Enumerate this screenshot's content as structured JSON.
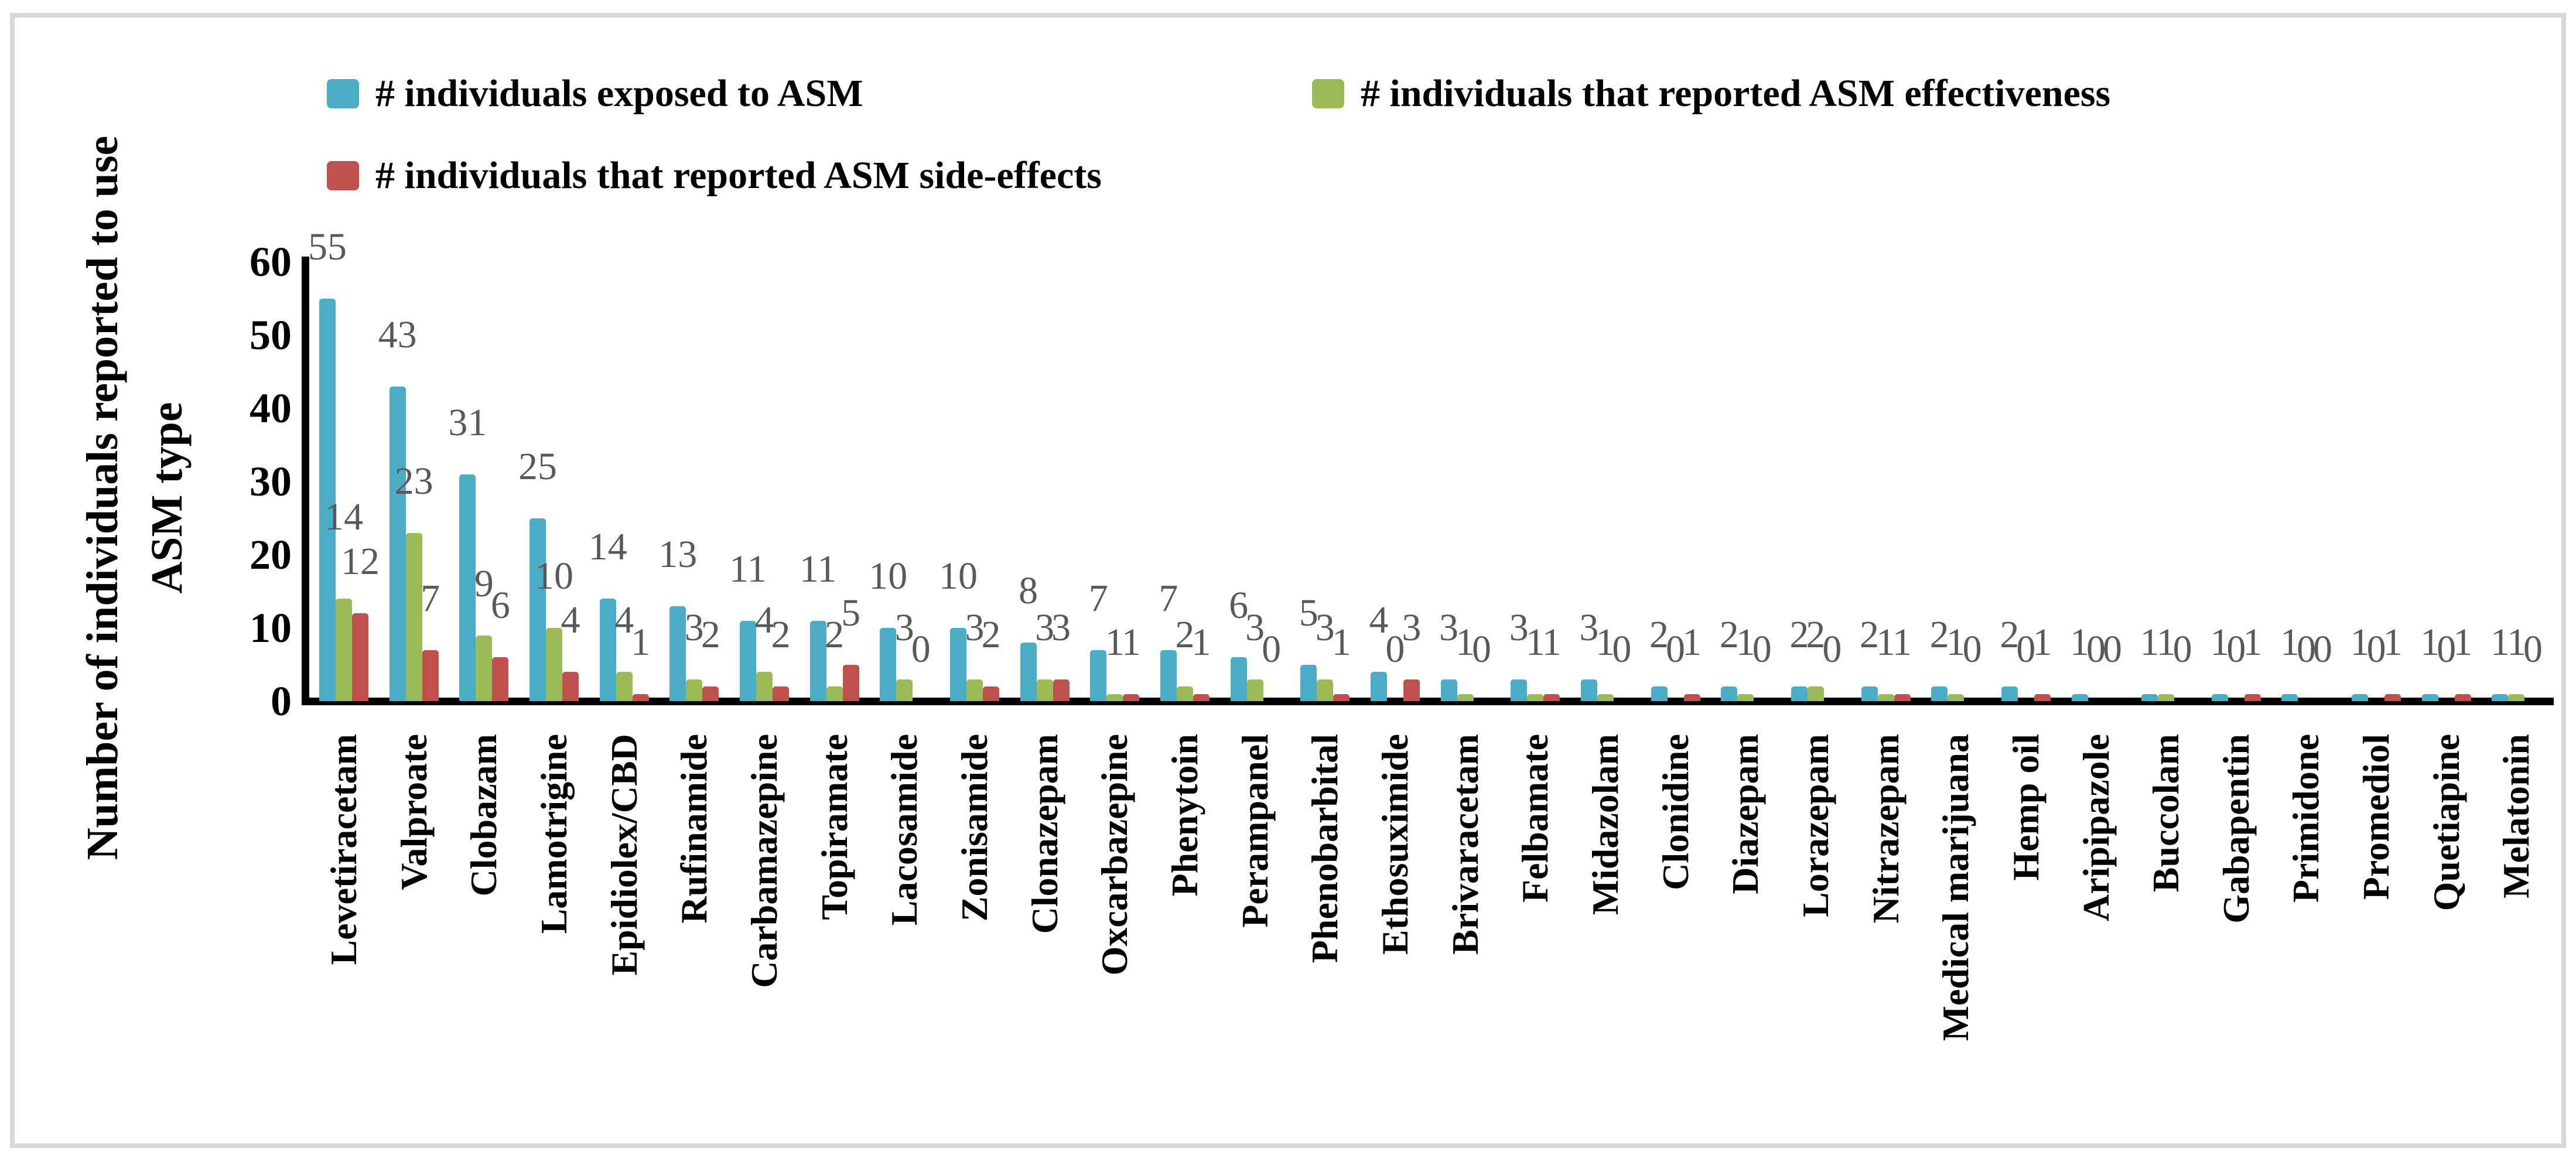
{
  "figure": {
    "y_axis_title_line1": "Number of individuals reported to use",
    "y_axis_title_line2": "ASM type",
    "y_tick_labels": [
      "0",
      "10",
      "20",
      "30",
      "40",
      "50",
      "60"
    ]
  },
  "legend": [
    {
      "label": "# individuals exposed to ASM",
      "color": "#4BACC6",
      "marker": "square-swatch"
    },
    {
      "label": "# individuals that reported ASM effectiveness",
      "color": "#9BBB59",
      "marker": "square-swatch"
    },
    {
      "label": "# individuals that reported ASM side-effects",
      "color": "#C0504D",
      "marker": "square-swatch"
    }
  ],
  "colors": {
    "exposed": "#4BACC6",
    "effectiveness": "#9BBB59",
    "side_effects": "#C0504D",
    "data_label": "#595959",
    "axis": "#000000",
    "frame_border": "#D8D8D8"
  },
  "chart_data": {
    "type": "bar",
    "title": "",
    "xlabel": "",
    "ylabel": "Number of individuals reported to use ASM type",
    "ylim": [
      0,
      60
    ],
    "y_ticks": [
      0,
      10,
      20,
      30,
      40,
      50,
      60
    ],
    "grid": false,
    "legend_position": "top",
    "data_labels": true,
    "categories": [
      "Levetiracetam",
      "Valproate",
      "Clobazam",
      "Lamotrigine",
      "Epidiolex/CBD",
      "Rufinamide",
      "Carbamazepine",
      "Topiramate",
      "Lacosamide",
      "Zonisamide",
      "Clonazepam",
      "Oxcarbazepine",
      "Phenytoin",
      "Perampanel",
      "Phenobarbital",
      "Ethosuximide",
      "Brivaracetam",
      "Felbamate",
      "Midazolam",
      "Clonidine",
      "Diazepam",
      "Lorazepam",
      "Nitrazepam",
      "Medical marijuana",
      "Hemp oil",
      "Aripipazole",
      "Buccolam",
      "Gabapentin",
      "Primidone",
      "Promediol",
      "Quetiapine",
      "Melatonin"
    ],
    "series": [
      {
        "name": "# individuals exposed to ASM",
        "color": "#4BACC6",
        "values": [
          55,
          43,
          31,
          25,
          14,
          13,
          11,
          11,
          10,
          10,
          8,
          7,
          7,
          6,
          5,
          4,
          3,
          3,
          3,
          2,
          2,
          2,
          2,
          2,
          2,
          1,
          1,
          1,
          1,
          1,
          1,
          1
        ]
      },
      {
        "name": "# individuals that reported ASM effectiveness",
        "color": "#9BBB59",
        "values": [
          14,
          23,
          9,
          10,
          4,
          3,
          4,
          2,
          3,
          3,
          3,
          1,
          2,
          3,
          3,
          0,
          1,
          1,
          1,
          0,
          1,
          2,
          1,
          1,
          0,
          0,
          1,
          0,
          0,
          0,
          0,
          1
        ]
      },
      {
        "name": "# individuals that reported ASM side-effects",
        "color": "#C0504D",
        "values": [
          12,
          7,
          6,
          4,
          1,
          2,
          2,
          5,
          0,
          2,
          3,
          1,
          1,
          0,
          1,
          3,
          0,
          1,
          0,
          1,
          0,
          0,
          1,
          0,
          1,
          0,
          0,
          1,
          0,
          1,
          1,
          0
        ]
      }
    ]
  }
}
